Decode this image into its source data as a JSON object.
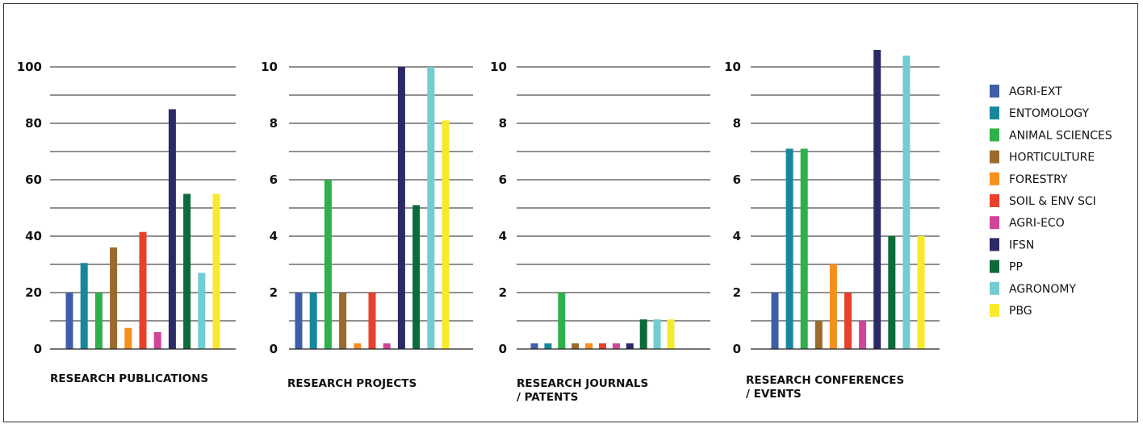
{
  "legend": [
    {
      "name": "AGRI-EXT",
      "color": "#3f5ea8"
    },
    {
      "name": "ENTOMOLOGY",
      "color": "#17889b"
    },
    {
      "name": "ANIMAL SCIENCES",
      "color": "#2eb04a"
    },
    {
      "name": "HORTICULTURE",
      "color": "#9a6b2c"
    },
    {
      "name": "FORESTRY",
      "color": "#f4901e"
    },
    {
      "name": "SOIL & ENV SCI",
      "color": "#e8402a"
    },
    {
      "name": "AGRI-ECO",
      "color": "#d0459a"
    },
    {
      "name": "IFSN",
      "color": "#2b2a66"
    },
    {
      "name": "PP",
      "color": "#0c6b3a"
    },
    {
      "name": "AGRONOMY",
      "color": "#72cdd1"
    },
    {
      "name": "PBG",
      "color": "#f7ea2a"
    }
  ],
  "chart_data": [
    {
      "type": "bar",
      "title_lines": [
        "RESEARCH PUBLICATIONS"
      ],
      "categories": [
        "AGRI-EXT",
        "ENTOMOLOGY",
        "ANIMAL SCIENCES",
        "HORTICULTURE",
        "FORESTRY",
        "SOIL & ENV SCI",
        "AGRI-ECO",
        "IFSN",
        "PP",
        "AGRONOMY",
        "PBG"
      ],
      "values": [
        20,
        30.5,
        20,
        36,
        7.5,
        41.5,
        6,
        85,
        55,
        27,
        55
      ],
      "ylim": [
        0,
        100
      ],
      "yticks": [
        0,
        20,
        40,
        60,
        80,
        100
      ],
      "ytick_labels": [
        "0",
        "20",
        "40",
        "60",
        "80",
        "100"
      ],
      "gridline_step": 10,
      "grid": true
    },
    {
      "type": "bar",
      "title_lines": [
        "RESEARCH PROJECTS"
      ],
      "categories": [
        "AGRI-EXT",
        "ENTOMOLOGY",
        "ANIMAL SCIENCES",
        "HORTICULTURE",
        "FORESTRY",
        "SOIL & ENV SCI",
        "AGRI-ECO",
        "IFSN",
        "PP",
        "AGRONOMY",
        "PBG"
      ],
      "values": [
        2,
        2,
        6,
        2,
        0.2,
        2,
        0.2,
        10,
        5.1,
        10,
        8.1
      ],
      "ylim": [
        0,
        10
      ],
      "yticks": [
        0,
        2,
        4,
        6,
        8,
        10
      ],
      "ytick_labels": [
        "0",
        "2",
        "4",
        "6",
        "8",
        "10"
      ],
      "gridline_step": 1,
      "grid": true
    },
    {
      "type": "bar",
      "title_lines": [
        "RESEARCH JOURNALS",
        "/ PATENTS"
      ],
      "categories": [
        "AGRI-EXT",
        "ENTOMOLOGY",
        "ANIMAL SCIENCES",
        "HORTICULTURE",
        "FORESTRY",
        "SOIL & ENV SCI",
        "AGRI-ECO",
        "IFSN",
        "PP",
        "AGRONOMY",
        "PBG"
      ],
      "values": [
        0.2,
        0.2,
        2,
        0.2,
        0.2,
        0.2,
        0.2,
        0.2,
        1.05,
        1.05,
        1.05
      ],
      "ylim": [
        0,
        10
      ],
      "yticks": [
        0,
        2,
        4,
        6,
        8,
        10
      ],
      "ytick_labels": [
        "0",
        "2",
        "4",
        "6",
        "8",
        "10"
      ],
      "gridline_step": 1,
      "grid": true
    },
    {
      "type": "bar",
      "title_lines": [
        "RESEARCH CONFERENCES",
        "/ EVENTS"
      ],
      "categories": [
        "AGRI-EXT",
        "ENTOMOLOGY",
        "ANIMAL SCIENCES",
        "HORTICULTURE",
        "FORESTRY",
        "SOIL & ENV SCI",
        "AGRI-ECO",
        "IFSN",
        "PP",
        "AGRONOMY",
        "PBG"
      ],
      "values": [
        2,
        7.1,
        7.1,
        1,
        3,
        2,
        1,
        10.6,
        4,
        10.4,
        4
      ],
      "ylim": [
        0,
        10
      ],
      "yticks": [
        0,
        2,
        4,
        6,
        8,
        10
      ],
      "ytick_labels": [
        "0",
        "2",
        "4",
        "6",
        "8",
        "10"
      ],
      "gridline_step": 1,
      "grid": true
    }
  ]
}
